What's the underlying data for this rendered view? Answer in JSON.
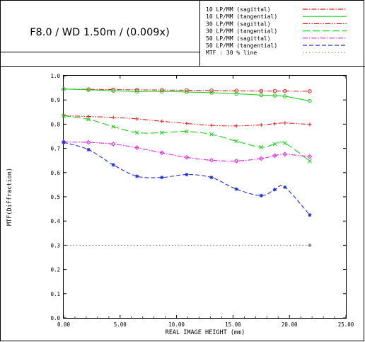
{
  "header": {
    "title": "F8.0 / WD 1.50m / (0.009x)"
  },
  "legend": {
    "position": "top-right",
    "entries": [
      {
        "label": "10 LP/MM (sagittal)",
        "color": "#e02020",
        "dash": "dashdot"
      },
      {
        "label": "10 LP/MM (tangential)",
        "color": "#20d020",
        "dash": "solid"
      },
      {
        "label": "30 LP/MM (sagittal)",
        "color": "#e02020",
        "dash": "dashdotdot"
      },
      {
        "label": "30 LP/MM (tangential)",
        "color": "#20d020",
        "dash": "longdash"
      },
      {
        "label": "50 LP/MM (sagittal)",
        "color": "#e020e0",
        "dash": "dashdot"
      },
      {
        "label": "50 LP/MM (tangential)",
        "color": "#2030d0",
        "dash": "dash"
      },
      {
        "label": "MTF : 30 % line",
        "color": "#888888",
        "dash": "dot"
      }
    ]
  },
  "chart_data": {
    "type": "line",
    "xlabel": "REAL IMAGE HEIGHT (mm)",
    "ylabel": "MTF(Diffraction)",
    "xlim": [
      0,
      25
    ],
    "ylim": [
      0,
      1
    ],
    "xticks": [
      "0.00",
      "5.00",
      "10.00",
      "15.00",
      "20.00",
      "25.00"
    ],
    "yticks": [
      "0.0",
      "0.1",
      "0.2",
      "0.3",
      "0.4",
      "0.5",
      "0.6",
      "0.7",
      "0.8",
      "0.9",
      "1.0"
    ],
    "series": [
      {
        "name": "10 LP/MM (sagittal)",
        "color": "#e02020",
        "marker": "o",
        "x": [
          0,
          2.2,
          4.4,
          6.5,
          8.7,
          10.9,
          13.1,
          15.3,
          17.5,
          18.7,
          19.6,
          21.8
        ],
        "y": [
          0.945,
          0.944,
          0.943,
          0.942,
          0.941,
          0.94,
          0.939,
          0.938,
          0.937,
          0.937,
          0.937,
          0.936
        ]
      },
      {
        "name": "10 LP/MM (tangential)",
        "color": "#20d020",
        "marker": "o",
        "x": [
          0,
          2.2,
          4.4,
          6.5,
          8.7,
          10.9,
          13.1,
          15.3,
          17.5,
          18.7,
          19.6,
          21.8
        ],
        "y": [
          0.945,
          0.942,
          0.938,
          0.935,
          0.935,
          0.933,
          0.93,
          0.926,
          0.92,
          0.918,
          0.915,
          0.896
        ]
      },
      {
        "name": "30 LP/MM (sagittal)",
        "color": "#e02020",
        "marker": "+",
        "x": [
          0,
          2.2,
          4.4,
          6.5,
          8.7,
          10.9,
          13.1,
          15.3,
          17.5,
          18.7,
          19.6,
          21.8
        ],
        "y": [
          0.835,
          0.832,
          0.828,
          0.822,
          0.812,
          0.803,
          0.795,
          0.793,
          0.797,
          0.802,
          0.805,
          0.799
        ]
      },
      {
        "name": "30 LP/MM (tangential)",
        "color": "#20d020",
        "marker": "x",
        "x": [
          0,
          2.2,
          4.4,
          6.5,
          8.7,
          10.9,
          13.1,
          15.3,
          17.5,
          18.7,
          19.6,
          21.8
        ],
        "y": [
          0.835,
          0.82,
          0.79,
          0.765,
          0.765,
          0.77,
          0.758,
          0.73,
          0.705,
          0.718,
          0.722,
          0.648
        ]
      },
      {
        "name": "50 LP/MM (sagittal)",
        "color": "#e020e0",
        "marker": "d",
        "x": [
          0,
          2.2,
          4.4,
          6.5,
          8.7,
          10.9,
          13.1,
          15.3,
          17.5,
          18.7,
          19.6,
          21.8
        ],
        "y": [
          0.727,
          0.725,
          0.718,
          0.703,
          0.682,
          0.663,
          0.651,
          0.648,
          0.658,
          0.67,
          0.676,
          0.666
        ]
      },
      {
        "name": "50 LP/MM (tangential)",
        "color": "#2030d0",
        "marker": "*",
        "x": [
          0,
          2.2,
          4.4,
          6.5,
          8.7,
          10.9,
          13.1,
          15.3,
          17.5,
          18.7,
          19.6,
          21.8
        ],
        "y": [
          0.725,
          0.695,
          0.632,
          0.585,
          0.58,
          0.592,
          0.58,
          0.532,
          0.505,
          0.53,
          0.54,
          0.425
        ]
      },
      {
        "name": "MTF : 30 % line",
        "color": "#888888",
        "marker": "none",
        "x": [
          0,
          21.8
        ],
        "y": [
          0.3,
          0.3
        ]
      }
    ]
  }
}
